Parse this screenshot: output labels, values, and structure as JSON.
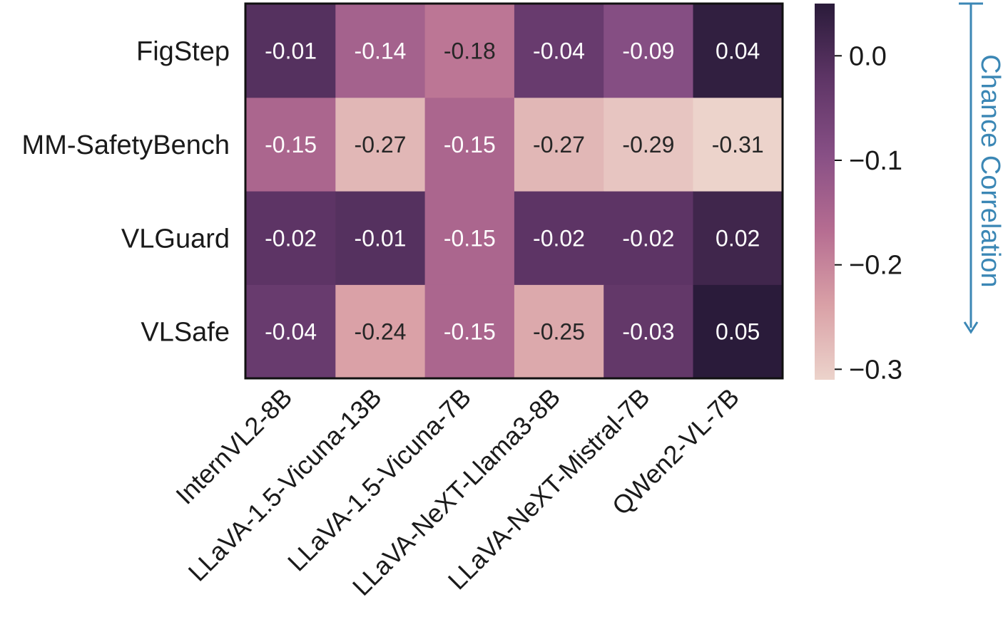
{
  "chart_data": {
    "type": "heatmap",
    "rows": [
      "FigStep",
      "MM-SafetyBench",
      "VLGuard",
      "VLSafe"
    ],
    "columns": [
      "InternVL2-8B",
      "LLaVA-1.5-Vicuna-13B",
      "LLaVA-1.5-Vicuna-7B",
      "LLaVA-NeXT-Llama3-8B",
      "LLaVA-NeXT-Mistral-7B",
      "QWen2-VL-7B"
    ],
    "values": [
      [
        -0.01,
        -0.14,
        -0.18,
        -0.04,
        -0.09,
        0.04
      ],
      [
        -0.15,
        -0.27,
        -0.15,
        -0.27,
        -0.29,
        -0.31
      ],
      [
        -0.02,
        -0.01,
        -0.15,
        -0.02,
        -0.02,
        0.02
      ],
      [
        -0.04,
        -0.24,
        -0.15,
        -0.25,
        -0.03,
        0.05
      ]
    ],
    "cell_labels": [
      [
        "-0.01",
        "-0.14",
        "-0.18",
        "-0.04",
        "-0.09",
        "0.04"
      ],
      [
        "-0.15",
        "-0.27",
        "-0.15",
        "-0.27",
        "-0.29",
        "-0.31"
      ],
      [
        "-0.02",
        "-0.01",
        "-0.15",
        "-0.02",
        "-0.02",
        "0.02"
      ],
      [
        "-0.04",
        "-0.24",
        "-0.15",
        "-0.25",
        "-0.03",
        "0.05"
      ]
    ],
    "colorbar": {
      "label": "Chance Correlation",
      "range": [
        -0.31,
        0.05
      ],
      "ticks": [
        0.0,
        -0.1,
        -0.2,
        -0.3
      ],
      "tick_labels": [
        "0.0",
        "−0.1",
        "−0.2",
        "−0.3"
      ],
      "arrow_color": "#3b87b5"
    },
    "colormap": [
      "#ecd3cb",
      "#d9a0a6",
      "#b56c91",
      "#874f85",
      "#5e3566",
      "#2a1b3a"
    ]
  }
}
